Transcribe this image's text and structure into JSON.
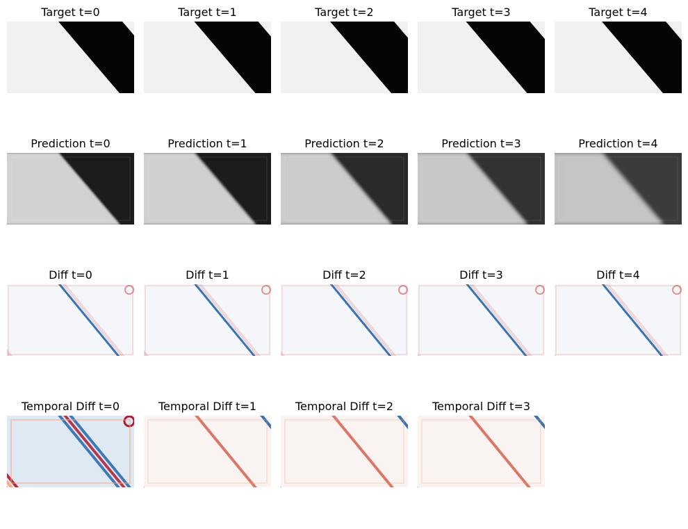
{
  "rows": [
    {
      "kind": "target",
      "panels": [
        {
          "title": "Target t=0"
        },
        {
          "title": "Target t=1"
        },
        {
          "title": "Target t=2"
        },
        {
          "title": "Target t=3"
        },
        {
          "title": "Target t=4"
        }
      ]
    },
    {
      "kind": "prediction",
      "panels": [
        {
          "title": "Prediction t=0",
          "dark": "#1a1a1a",
          "light": "#d2d2d2",
          "blur": 1.2
        },
        {
          "title": "Prediction t=1",
          "dark": "#1e1e1e",
          "light": "#d0d0d0",
          "blur": 1.6
        },
        {
          "title": "Prediction t=2",
          "dark": "#2a2a2a",
          "light": "#cccccc",
          "blur": 2.0
        },
        {
          "title": "Prediction t=3",
          "dark": "#333333",
          "light": "#c8c8c8",
          "blur": 2.4
        },
        {
          "title": "Prediction t=4",
          "dark": "#3a3a3a",
          "light": "#c5c5c5",
          "blur": 2.8
        }
      ]
    },
    {
      "kind": "diff",
      "panels": [
        {
          "title": "Diff t=0"
        },
        {
          "title": "Diff t=1"
        },
        {
          "title": "Diff t=2"
        },
        {
          "title": "Diff t=3"
        },
        {
          "title": "Diff t=4"
        }
      ]
    },
    {
      "kind": "temporal",
      "panels": [
        {
          "title": "Temporal Diff t=0"
        },
        {
          "title": "Temporal Diff t=1"
        },
        {
          "title": "Temporal Diff t=2"
        },
        {
          "title": "Temporal Diff t=3"
        }
      ]
    }
  ],
  "colors": {
    "target_dark": "#050505",
    "target_light": "#f1f1f1",
    "diff_bg": "#f4f6f9",
    "diff_red": "#c8312e",
    "diff_blue": "#2166ac",
    "temporal_red": "#b2182b",
    "temporal_blue": "#08519c"
  }
}
